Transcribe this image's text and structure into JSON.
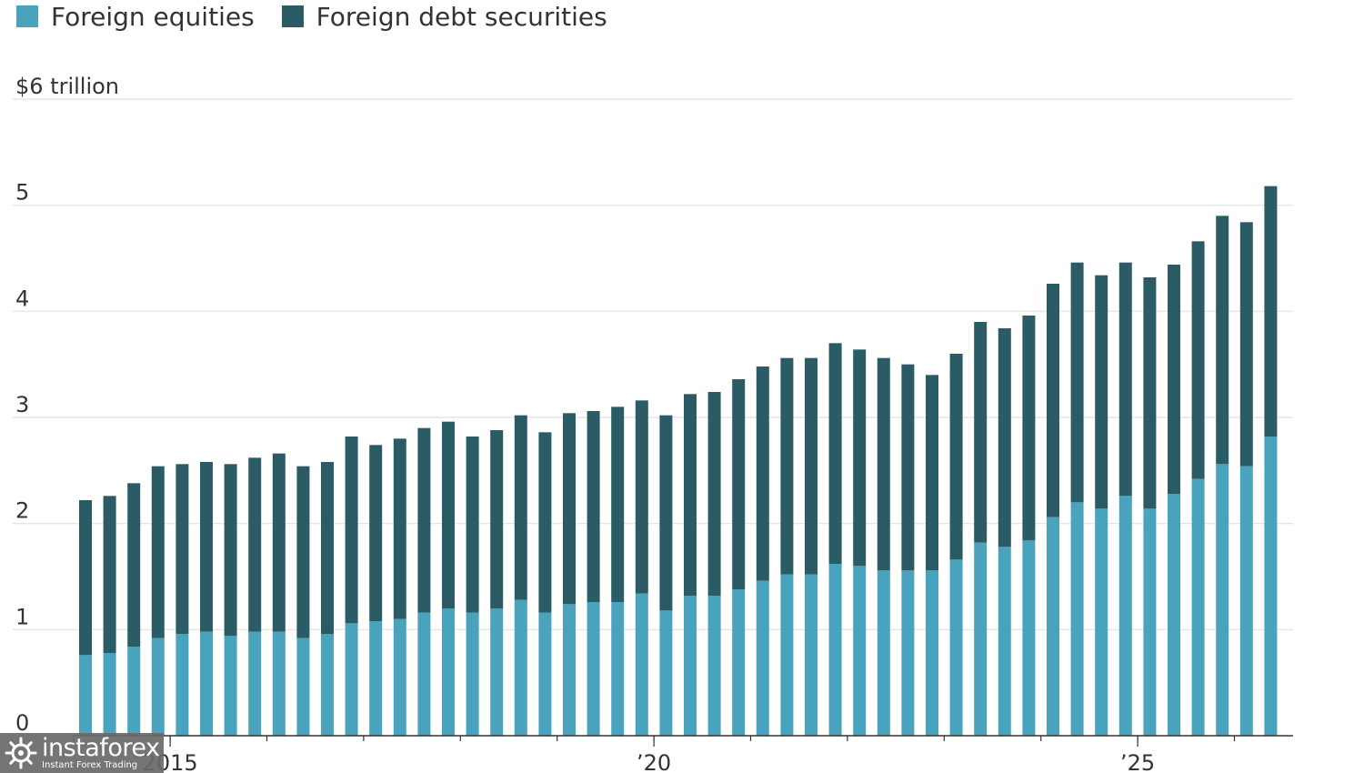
{
  "legend": {
    "items": [
      {
        "label": "Foreign equities",
        "color": "#4aa3bd"
      },
      {
        "label": "Foreign debt securities",
        "color": "#2b5c66"
      }
    ]
  },
  "watermark": {
    "brand": "instaforex",
    "tagline": "Instant Forex Trading"
  },
  "chart_data": {
    "type": "bar",
    "stacked": true,
    "unit_label": "$6 trillion",
    "ylim": [
      0,
      6
    ],
    "y_ticks": [
      {
        "value": 0,
        "label": "0"
      },
      {
        "value": 1,
        "label": "1"
      },
      {
        "value": 2,
        "label": "2"
      },
      {
        "value": 3,
        "label": "3"
      },
      {
        "value": 4,
        "label": "4"
      },
      {
        "value": 5,
        "label": "5"
      },
      {
        "value": 6,
        "label": "$6 trillion"
      }
    ],
    "x_ticks": [
      {
        "label": "2015",
        "bar_index": 4
      },
      {
        "label": "’20",
        "bar_index": 24
      },
      {
        "label": "’25",
        "bar_index": 44
      }
    ],
    "grid": true,
    "legend_position": "top-left",
    "series": [
      {
        "name": "Foreign equities",
        "color": "#4aa3bd",
        "values": [
          0.76,
          0.78,
          0.84,
          0.92,
          0.96,
          0.98,
          0.94,
          0.98,
          0.98,
          0.92,
          0.96,
          1.06,
          1.08,
          1.1,
          1.16,
          1.2,
          1.16,
          1.2,
          1.28,
          1.16,
          1.24,
          1.26,
          1.26,
          1.34,
          1.18,
          1.32,
          1.32,
          1.38,
          1.46,
          1.52,
          1.52,
          1.62,
          1.6,
          1.56,
          1.56,
          1.56,
          1.66,
          1.82,
          1.78,
          1.84,
          2.06,
          2.2,
          2.14,
          2.26,
          2.14,
          2.28,
          2.42,
          2.56,
          2.54,
          2.82
        ]
      },
      {
        "name": "Foreign debt securities",
        "color": "#2b5c66",
        "values": [
          1.46,
          1.48,
          1.54,
          1.62,
          1.6,
          1.6,
          1.62,
          1.64,
          1.68,
          1.62,
          1.62,
          1.76,
          1.66,
          1.7,
          1.74,
          1.76,
          1.66,
          1.68,
          1.74,
          1.7,
          1.8,
          1.8,
          1.84,
          1.82,
          1.84,
          1.9,
          1.92,
          1.98,
          2.02,
          2.04,
          2.04,
          2.08,
          2.04,
          2.0,
          1.94,
          1.84,
          1.94,
          2.08,
          2.06,
          2.12,
          2.2,
          2.26,
          2.2,
          2.2,
          2.18,
          2.16,
          2.24,
          2.34,
          2.3,
          2.36
        ]
      }
    ]
  }
}
